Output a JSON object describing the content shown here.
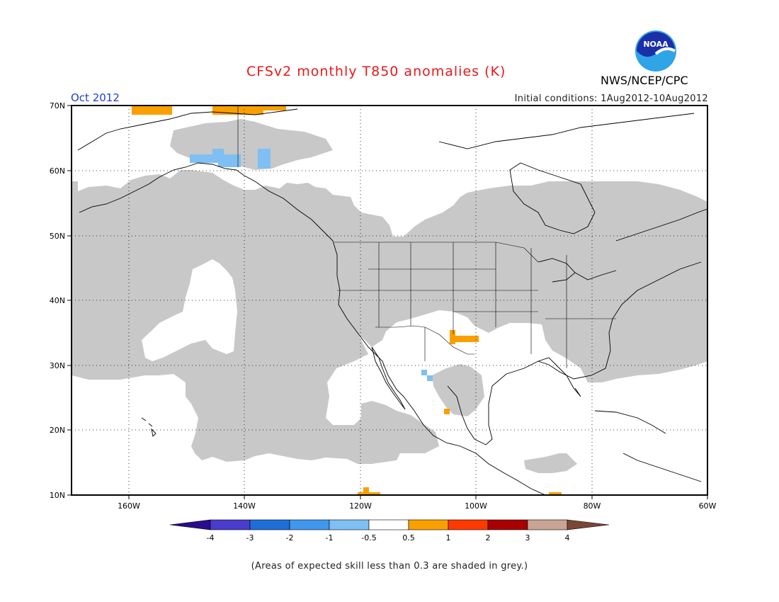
{
  "title": "CFSv2 monthly T850 anomalies (K)",
  "organization": "NWS/NCEP/CPC",
  "logo_text": "NOAA",
  "valid_month": "Oct 2012",
  "initial_conditions": "Initial conditions: 1Aug2012-10Aug2012",
  "footnote": "(Areas of expected skill less than 0.3 are shaded in grey.)",
  "colors": {
    "title": "#e8191b",
    "month": "#1f3fd6",
    "grey_mask": "#c8c8c8",
    "land_outline": "#000000"
  },
  "map": {
    "lat_labels": [
      "10N",
      "20N",
      "30N",
      "40N",
      "50N",
      "60N",
      "70N"
    ],
    "lon_labels": [
      "160W",
      "140W",
      "120W",
      "100W",
      "80W",
      "60W"
    ],
    "lat_range": [
      10,
      70
    ],
    "lon_range": [
      -170,
      -60
    ],
    "grid": "dotted"
  },
  "colorbar": {
    "tick_labels": [
      "-4",
      "-3",
      "-2",
      "-1",
      "-0.5",
      "0.5",
      "1",
      "2",
      "3",
      "4"
    ],
    "colors": [
      "#2b0c8c",
      "#4a3ccc",
      "#1e6ed8",
      "#3f97ee",
      "#7fbff3",
      "#ffffff",
      "#f9a000",
      "#ff3a00",
      "#a80000",
      "#c9a394",
      "#7a4636"
    ]
  }
}
